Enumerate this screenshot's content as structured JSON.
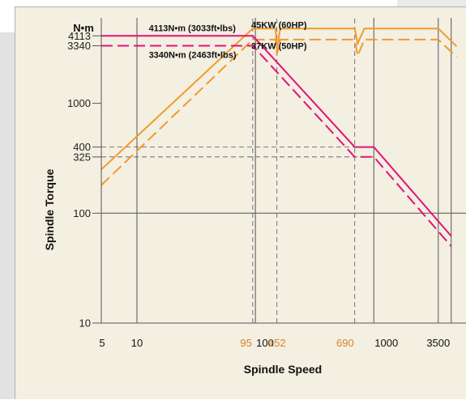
{
  "chart_data": {
    "type": "line",
    "title": "",
    "xlabel": "Spindle Speed",
    "ylabel": "Spindle Torque",
    "y_unit": "N•m",
    "x_scale": "log",
    "y_scale": "log",
    "xlim": [
      5,
      6000
    ],
    "ylim": [
      10,
      6000
    ],
    "grid": false,
    "x_ticks": [
      {
        "value": 5,
        "label": "5",
        "color": "#111111"
      },
      {
        "value": 10,
        "label": "10",
        "color": "#111111"
      },
      {
        "value": 95,
        "label": "95",
        "color": "#d9832a"
      },
      {
        "value": 100,
        "label": "100",
        "color": "#111111"
      },
      {
        "value": 152,
        "label": "152",
        "color": "#d9832a"
      },
      {
        "value": 690,
        "label": "690",
        "color": "#d9832a"
      },
      {
        "value": 1000,
        "label": "1000",
        "color": "#111111"
      },
      {
        "value": 3500,
        "label": "3500",
        "color": "#111111"
      }
    ],
    "y_ticks": [
      {
        "value": 10,
        "label": "10"
      },
      {
        "value": 100,
        "label": "100"
      },
      {
        "value": 325,
        "label": "325"
      },
      {
        "value": 400,
        "label": "400"
      },
      {
        "value": 1000,
        "label": "1000"
      },
      {
        "value": 3340,
        "label": "3340"
      },
      {
        "value": 4113,
        "label": "4113"
      }
    ],
    "annotations": [
      {
        "id": "torque-high",
        "text": "4113N•m (3033ft•lbs)",
        "x": 12,
        "y": 4113
      },
      {
        "id": "torque-low",
        "text": "3340N•m (2463ft•lbs)",
        "x": 12,
        "y": 3340
      },
      {
        "id": "power-high",
        "text": "45KW (60HP)",
        "x": 88,
        "y": 4113
      },
      {
        "id": "power-low",
        "text": "37KW (50HP)",
        "x": 88,
        "y": 3340
      }
    ],
    "series": [
      {
        "id": "power-45",
        "color": "#f39a2b",
        "style": "solid",
        "points": [
          [
            5,
            250
          ],
          [
            95,
            4800
          ],
          [
            148,
            4800
          ],
          [
            152,
            3100
          ],
          [
            162,
            4800
          ],
          [
            690,
            4800
          ],
          [
            730,
            3500
          ],
          [
            830,
            4800
          ],
          [
            3500,
            4800
          ],
          [
            5000,
            3300
          ]
        ]
      },
      {
        "id": "power-37",
        "color": "#f39a2b",
        "style": "dashed",
        "points": [
          [
            5,
            180
          ],
          [
            95,
            3800
          ],
          [
            148,
            3800
          ],
          [
            152,
            2800
          ],
          [
            162,
            3800
          ],
          [
            690,
            3800
          ],
          [
            730,
            2700
          ],
          [
            830,
            3800
          ],
          [
            3500,
            3800
          ],
          [
            5000,
            2650
          ]
        ]
      },
      {
        "id": "torque-4113",
        "color": "#e0147a",
        "style": "solid",
        "points": [
          [
            5,
            4113
          ],
          [
            95,
            4113
          ],
          [
            690,
            400
          ],
          [
            1000,
            400
          ],
          [
            4500,
            62
          ]
        ]
      },
      {
        "id": "torque-3340",
        "color": "#e0147a",
        "style": "dashed",
        "points": [
          [
            5,
            3340
          ],
          [
            95,
            3340
          ],
          [
            690,
            325
          ],
          [
            1000,
            325
          ],
          [
            4500,
            50
          ]
        ]
      }
    ],
    "reference_lines": {
      "vertical_solid": [
        10,
        100,
        1000,
        3500,
        4500
      ],
      "vertical_dashed": [
        95,
        152,
        690
      ],
      "horizontal_solid": [
        100
      ],
      "horizontal_dashed": [
        325,
        400
      ]
    }
  }
}
